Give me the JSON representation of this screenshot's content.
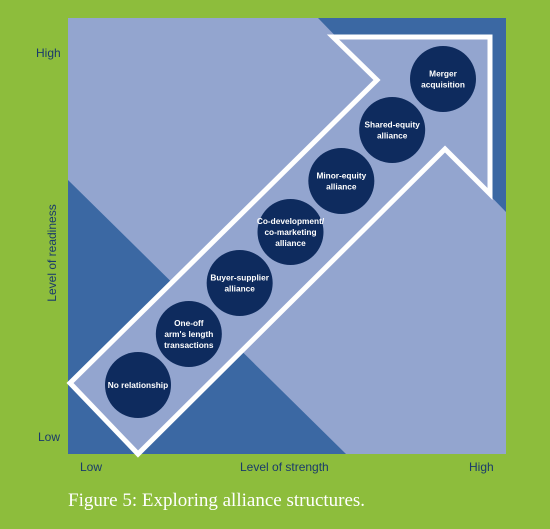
{
  "axes": {
    "y_high": "High",
    "y_low": "Low",
    "y_title": "Level of readiness",
    "x_low": "Low",
    "x_high": "High",
    "x_title": "Level of strength"
  },
  "stages": [
    {
      "lines": [
        "No relationship"
      ]
    },
    {
      "lines": [
        "One-off",
        "arm's length",
        "transactions"
      ]
    },
    {
      "lines": [
        "Buyer-supplier",
        "alliance"
      ]
    },
    {
      "lines": [
        "Co-development/",
        "co-marketing",
        "alliance"
      ]
    },
    {
      "lines": [
        "Minor-equity",
        "alliance"
      ]
    },
    {
      "lines": [
        "Shared-equity",
        "alliance"
      ]
    },
    {
      "lines": [
        "Merger",
        "acquisition"
      ]
    }
  ],
  "caption": "Figure 5: Exploring alliance structures.",
  "colors": {
    "background": "#8dbd3c",
    "panel": "#93a5cf",
    "panel_dark": "#3b68a3",
    "circle": "#0e2b5e",
    "arrow_outline": "#ffffff"
  }
}
